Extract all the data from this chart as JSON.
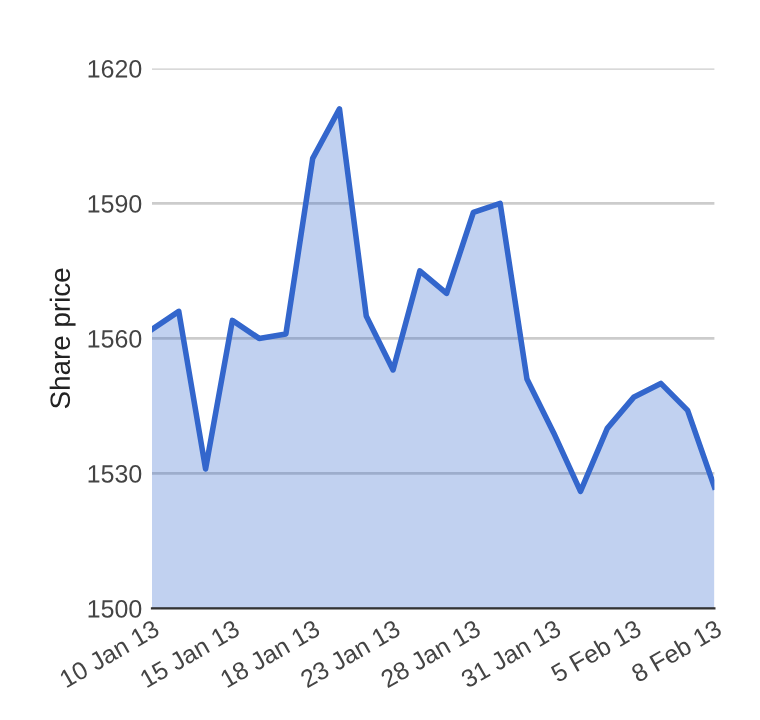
{
  "chart_data": {
    "type": "area",
    "ylabel": "Share price",
    "categories": [
      "10 Jan 13",
      null,
      null,
      "15 Jan 13",
      null,
      null,
      "18 Jan 13",
      null,
      null,
      "23 Jan 13",
      null,
      null,
      "28 Jan 13",
      null,
      null,
      "31 Jan 13",
      null,
      null,
      "5 Feb 13",
      null,
      null,
      "8 Feb 13"
    ],
    "series": [
      {
        "color": "#3366cc",
        "values": [
          1562,
          1566,
          1531,
          1564,
          1560,
          1561,
          1600,
          1611,
          1565,
          1553,
          1575,
          1570,
          1588,
          1590,
          1551,
          1539,
          1526,
          1540,
          1547,
          1550,
          1544,
          1527
        ]
      }
    ],
    "ylim": [
      1500,
      1620
    ],
    "yticks": [
      1500,
      1530,
      1560,
      1590,
      1620
    ],
    "grid": "y",
    "legend": false
  }
}
